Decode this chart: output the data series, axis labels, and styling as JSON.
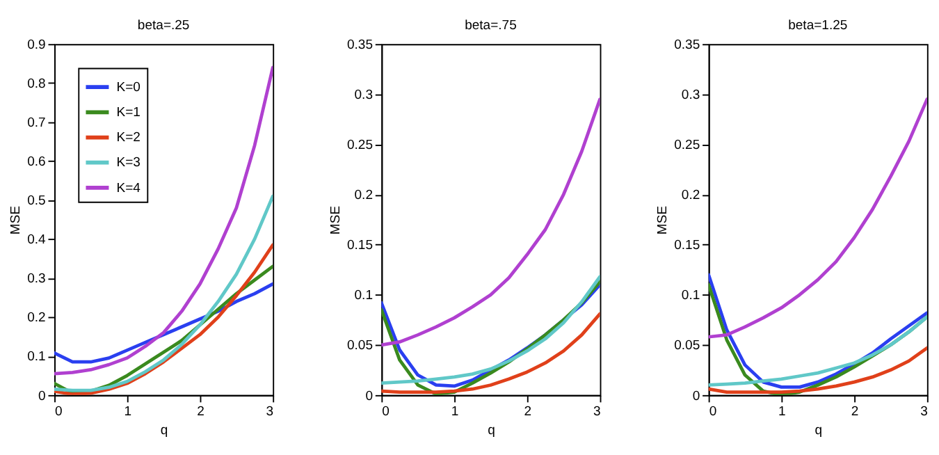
{
  "chart_data": [
    {
      "type": "line",
      "title": "beta=.25",
      "xlabel": "q",
      "ylabel": "MSE",
      "legend": "top left",
      "xlim": [
        0,
        3
      ],
      "xticks": [
        0,
        1,
        2,
        3
      ],
      "ylim": [
        0,
        0.9
      ],
      "yticks": [
        0,
        0.1,
        0.2,
        0.3,
        0.4,
        0.5,
        0.6,
        0.7,
        0.8,
        0.9
      ],
      "line_style": "solid",
      "marker": "none",
      "x": [
        0,
        0.25,
        0.5,
        0.75,
        1,
        1.25,
        1.5,
        1.75,
        2,
        2.25,
        2.5,
        2.75,
        3
      ],
      "series": [
        {
          "name": "K=0",
          "color": "#2a3ff0",
          "values": [
            0.108,
            0.085,
            0.085,
            0.095,
            0.115,
            0.135,
            0.155,
            0.175,
            0.195,
            0.215,
            0.24,
            0.26,
            0.285
          ]
        },
        {
          "name": "K=1",
          "color": "#3a8a1e",
          "values": [
            0.03,
            0.005,
            0.01,
            0.025,
            0.05,
            0.08,
            0.11,
            0.14,
            0.18,
            0.22,
            0.26,
            0.295,
            0.33
          ]
        },
        {
          "name": "K=2",
          "color": "#e0401a",
          "values": [
            0.01,
            0.002,
            0.005,
            0.015,
            0.03,
            0.055,
            0.085,
            0.12,
            0.155,
            0.2,
            0.255,
            0.315,
            0.385
          ]
        },
        {
          "name": "K=3",
          "color": "#60c8c8",
          "values": [
            0.015,
            0.012,
            0.012,
            0.02,
            0.035,
            0.06,
            0.09,
            0.13,
            0.18,
            0.24,
            0.31,
            0.4,
            0.51
          ]
        },
        {
          "name": "K=4",
          "color": "#b040d0",
          "values": [
            0.055,
            0.058,
            0.065,
            0.078,
            0.095,
            0.125,
            0.16,
            0.215,
            0.285,
            0.375,
            0.48,
            0.64,
            0.84
          ]
        }
      ]
    },
    {
      "type": "line",
      "title": "beta=.75",
      "xlabel": "q",
      "ylabel": "MSE",
      "xlim": [
        0,
        3
      ],
      "xticks": [
        0,
        1,
        2,
        3
      ],
      "ylim": [
        0,
        0.35
      ],
      "yticks": [
        0,
        0.05,
        0.1,
        0.15,
        0.2,
        0.25,
        0.3,
        0.35
      ],
      "line_style": "solid",
      "marker": "none",
      "x": [
        0,
        0.25,
        0.5,
        0.75,
        1,
        1.25,
        1.5,
        1.75,
        2,
        2.25,
        2.5,
        2.75,
        3
      ],
      "series": [
        {
          "color": "#2a3ff0",
          "values": [
            0.092,
            0.045,
            0.02,
            0.01,
            0.009,
            0.015,
            0.025,
            0.035,
            0.047,
            0.06,
            0.075,
            0.09,
            0.11
          ]
        },
        {
          "color": "#3a8a1e",
          "values": [
            0.085,
            0.035,
            0.01,
            0.001,
            0.003,
            0.012,
            0.022,
            0.033,
            0.046,
            0.06,
            0.075,
            0.092,
            0.113
          ]
        },
        {
          "color": "#e0401a",
          "values": [
            0.004,
            0.003,
            0.003,
            0.003,
            0.004,
            0.006,
            0.01,
            0.016,
            0.023,
            0.032,
            0.044,
            0.06,
            0.081
          ]
        },
        {
          "color": "#60c8c8",
          "values": [
            0.012,
            0.013,
            0.014,
            0.016,
            0.018,
            0.021,
            0.026,
            0.034,
            0.044,
            0.056,
            0.072,
            0.093,
            0.118
          ]
        },
        {
          "color": "#b040d0",
          "values": [
            0.05,
            0.053,
            0.06,
            0.068,
            0.077,
            0.088,
            0.1,
            0.117,
            0.14,
            0.165,
            0.2,
            0.243,
            0.295
          ]
        }
      ]
    },
    {
      "type": "line",
      "title": "beta=1.25",
      "xlabel": "q",
      "ylabel": "MSE",
      "xlim": [
        0,
        3
      ],
      "xticks": [
        0,
        1,
        2,
        3
      ],
      "ylim": [
        0,
        0.35
      ],
      "yticks": [
        0,
        0.05,
        0.1,
        0.15,
        0.2,
        0.25,
        0.3,
        0.35
      ],
      "line_style": "solid",
      "marker": "none",
      "x": [
        0,
        0.25,
        0.5,
        0.75,
        1,
        1.25,
        1.5,
        1.75,
        2,
        2.25,
        2.5,
        2.75,
        3
      ],
      "series": [
        {
          "color": "#2a3ff0",
          "values": [
            0.12,
            0.065,
            0.03,
            0.013,
            0.008,
            0.008,
            0.013,
            0.021,
            0.031,
            0.042,
            0.056,
            0.069,
            0.082
          ]
        },
        {
          "color": "#3a8a1e",
          "values": [
            0.11,
            0.055,
            0.02,
            0.004,
            0.0,
            0.003,
            0.01,
            0.018,
            0.028,
            0.039,
            0.05,
            0.063,
            0.078
          ]
        },
        {
          "color": "#e0401a",
          "values": [
            0.006,
            0.003,
            0.003,
            0.003,
            0.003,
            0.004,
            0.006,
            0.009,
            0.013,
            0.018,
            0.025,
            0.034,
            0.047
          ]
        },
        {
          "color": "#60c8c8",
          "values": [
            0.01,
            0.011,
            0.012,
            0.014,
            0.016,
            0.019,
            0.022,
            0.027,
            0.032,
            0.04,
            0.05,
            0.063,
            0.078
          ]
        },
        {
          "color": "#b040d0",
          "values": [
            0.058,
            0.06,
            0.068,
            0.077,
            0.087,
            0.1,
            0.115,
            0.133,
            0.157,
            0.185,
            0.218,
            0.253,
            0.295
          ]
        }
      ]
    }
  ]
}
